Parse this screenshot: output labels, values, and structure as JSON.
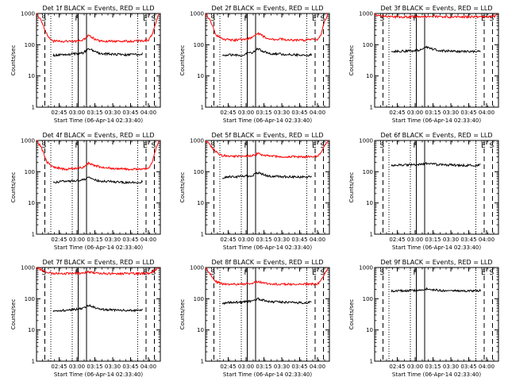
{
  "page": {
    "background": "#ffffff",
    "colors": {
      "events": "#000000",
      "lld": "#ff0000",
      "markers": "#000000"
    }
  },
  "chart_data": [
    {
      "type": "line",
      "detector": "1f",
      "title": "Det 1f BLACK = Events, RED = LLD",
      "xlabel": "Start Time (06-Apr-14 02:33:40)",
      "ylabel": "Counts/sec",
      "yscale": "log",
      "ylim": [
        1,
        1000
      ],
      "x_tick_labels": [
        "02:45",
        "03:00",
        "03:15",
        "03:30",
        "03:45",
        "04:00"
      ],
      "y_tick_labels": [
        "1",
        "10",
        "100",
        "1000"
      ],
      "markers": [
        "S",
        "F",
        "E",
        "S"
      ],
      "series": [
        {
          "color": "#000000",
          "x": [
            "02:40",
            "02:45",
            "02:55",
            "03:00",
            "03:05",
            "03:10",
            "03:15",
            "03:20",
            "03:30",
            "03:40",
            "03:50",
            "03:55"
          ],
          "y": [
            45,
            48,
            50,
            52,
            55,
            75,
            60,
            52,
            50,
            48,
            48,
            52
          ]
        },
        {
          "color": "#ff0000",
          "x": [
            "02:26",
            "02:30",
            "02:35",
            "02:40",
            "02:50",
            "03:00",
            "03:05",
            "03:10",
            "03:15",
            "03:20",
            "03:30",
            "03:40",
            "03:50",
            "04:00",
            "04:03",
            "04:06",
            "04:09"
          ],
          "y": [
            1000,
            600,
            200,
            130,
            130,
            130,
            140,
            200,
            150,
            130,
            130,
            130,
            130,
            140,
            200,
            500,
            1000
          ]
        }
      ]
    },
    {
      "type": "line",
      "detector": "2f",
      "title": "Det 2f BLACK = Events, RED = LLD",
      "xlabel": "Start Time (06-Apr-14 02:33:40)",
      "ylabel": "Counts/sec",
      "yscale": "log",
      "ylim": [
        1,
        1000
      ],
      "x_tick_labels": [
        "02:45",
        "03:00",
        "03:15",
        "03:30",
        "03:45",
        "04:00"
      ],
      "y_tick_labels": [
        "1",
        "10",
        "100",
        "1000"
      ],
      "markers": [
        "S",
        "F",
        "E",
        "S"
      ],
      "series": [
        {
          "color": "#000000",
          "x": [
            "02:40",
            "02:45",
            "02:55",
            "03:00",
            "03:05",
            "03:10",
            "03:15",
            "03:20",
            "03:30",
            "03:40",
            "03:50",
            "03:55"
          ],
          "y": [
            45,
            48,
            45,
            52,
            55,
            75,
            60,
            52,
            50,
            48,
            45,
            48
          ]
        },
        {
          "color": "#ff0000",
          "x": [
            "02:26",
            "02:30",
            "02:35",
            "02:40",
            "02:50",
            "03:00",
            "03:05",
            "03:10",
            "03:15",
            "03:20",
            "03:30",
            "03:40",
            "03:50",
            "04:00",
            "04:03",
            "04:06",
            "04:09"
          ],
          "y": [
            1000,
            600,
            200,
            150,
            140,
            150,
            170,
            230,
            180,
            150,
            150,
            140,
            140,
            150,
            220,
            550,
            1000
          ]
        }
      ]
    },
    {
      "type": "line",
      "detector": "3f",
      "title": "Det 3f BLACK = Events, RED = LLD",
      "xlabel": "Start Time (06-Apr-14 02:33:40)",
      "ylabel": "Counts/sec",
      "yscale": "log",
      "ylim": [
        1,
        1000
      ],
      "x_tick_labels": [
        "02:45",
        "03:00",
        "03:15",
        "03:30",
        "03:45",
        "04:00"
      ],
      "y_tick_labels": [
        "1",
        "10",
        "100",
        "1000"
      ],
      "markers": [
        "S",
        "F",
        "E",
        "S"
      ],
      "series": [
        {
          "color": "#000000",
          "x": [
            "02:40",
            "02:45",
            "02:55",
            "03:00",
            "03:05",
            "03:10",
            "03:15",
            "03:20",
            "03:30",
            "03:40",
            "03:50",
            "03:55"
          ],
          "y": [
            60,
            62,
            62,
            64,
            68,
            85,
            72,
            65,
            62,
            60,
            60,
            62
          ]
        },
        {
          "color": "#ff0000",
          "x": [
            "02:26",
            "02:28",
            "02:32",
            "02:40",
            "02:50",
            "03:00",
            "03:10",
            "03:20",
            "03:30",
            "03:40",
            "03:50",
            "04:00",
            "04:06",
            "04:08",
            "04:09"
          ],
          "y": [
            1000,
            900,
            800,
            780,
            780,
            790,
            800,
            790,
            780,
            780,
            780,
            790,
            800,
            900,
            1000
          ]
        }
      ]
    },
    {
      "type": "line",
      "detector": "4f",
      "title": "Det 4f BLACK = Events, RED = LLD",
      "xlabel": "Start Time (06-Apr-14 02:33:40)",
      "ylabel": "Counts/sec",
      "yscale": "log",
      "ylim": [
        1,
        1000
      ],
      "x_tick_labels": [
        "02:45",
        "03:00",
        "03:15",
        "03:30",
        "03:45",
        "04:00"
      ],
      "y_tick_labels": [
        "1",
        "10",
        "100",
        "1000"
      ],
      "markers": [
        "S",
        "F",
        "E",
        "S"
      ],
      "series": [
        {
          "color": "#000000",
          "x": [
            "02:40",
            "02:45",
            "02:55",
            "03:00",
            "03:05",
            "03:10",
            "03:15",
            "03:20",
            "03:30",
            "03:40",
            "03:50",
            "03:55"
          ],
          "y": [
            45,
            48,
            50,
            52,
            55,
            65,
            55,
            50,
            48,
            45,
            45,
            48
          ]
        },
        {
          "color": "#ff0000",
          "x": [
            "02:26",
            "02:30",
            "02:35",
            "02:40",
            "02:50",
            "03:00",
            "03:05",
            "03:10",
            "03:15",
            "03:20",
            "03:30",
            "03:40",
            "03:50",
            "04:00",
            "04:03",
            "04:06",
            "04:09"
          ],
          "y": [
            1000,
            600,
            200,
            140,
            120,
            130,
            140,
            190,
            160,
            140,
            130,
            120,
            120,
            130,
            200,
            500,
            1000
          ]
        }
      ]
    },
    {
      "type": "line",
      "detector": "5f",
      "title": "Det 5f BLACK = Events, RED = LLD",
      "xlabel": "Start Time (06-Apr-14 02:33:40)",
      "ylabel": "Counts/sec",
      "yscale": "log",
      "ylim": [
        1,
        1000
      ],
      "x_tick_labels": [
        "02:45",
        "03:00",
        "03:15",
        "03:30",
        "03:45",
        "04:00"
      ],
      "y_tick_labels": [
        "1",
        "10",
        "100",
        "1000"
      ],
      "markers": [
        "S",
        "F",
        "E",
        "S"
      ],
      "series": [
        {
          "color": "#000000",
          "x": [
            "02:40",
            "02:45",
            "02:55",
            "03:00",
            "03:05",
            "03:10",
            "03:15",
            "03:20",
            "03:30",
            "03:40",
            "03:50",
            "03:55"
          ],
          "y": [
            62,
            68,
            70,
            72,
            75,
            92,
            80,
            72,
            70,
            68,
            68,
            70
          ]
        },
        {
          "color": "#ff0000",
          "x": [
            "02:26",
            "02:30",
            "02:35",
            "02:40",
            "02:50",
            "03:00",
            "03:05",
            "03:10",
            "03:15",
            "03:20",
            "03:30",
            "03:40",
            "03:50",
            "04:00",
            "04:03",
            "04:06",
            "04:09"
          ],
          "y": [
            1000,
            700,
            420,
            330,
            310,
            320,
            330,
            380,
            340,
            320,
            300,
            300,
            300,
            310,
            400,
            700,
            1000
          ]
        }
      ]
    },
    {
      "type": "line",
      "detector": "6f",
      "title": "Det 6f BLACK = Events, RED = LLD",
      "xlabel": "Start Time (06-Apr-14 02:33:40)",
      "ylabel": "Counts/sec",
      "yscale": "log",
      "ylim": [
        1,
        1000
      ],
      "x_tick_labels": [
        "02:45",
        "03:00",
        "03:15",
        "03:30",
        "03:45",
        "04:00"
      ],
      "y_tick_labels": [
        "1",
        "10",
        "100",
        "1000"
      ],
      "markers": [
        "S",
        "F",
        "E",
        "S"
      ],
      "series": [
        {
          "color": "#000000",
          "x": [
            "02:40",
            "02:45",
            "02:55",
            "03:00",
            "03:05",
            "03:10",
            "03:15",
            "03:20",
            "03:30",
            "03:40",
            "03:50",
            "03:55"
          ],
          "y": [
            160,
            165,
            165,
            170,
            172,
            185,
            175,
            168,
            165,
            160,
            160,
            162
          ]
        }
      ]
    },
    {
      "type": "line",
      "detector": "7f",
      "title": "Det 7f BLACK = Events, RED = LLD",
      "xlabel": "Start Time (06-Apr-14 02:33:40)",
      "ylabel": "Counts/sec",
      "yscale": "log",
      "ylim": [
        1,
        1000
      ],
      "x_tick_labels": [
        "02:45",
        "03:00",
        "03:15",
        "03:30",
        "03:45",
        "04:00"
      ],
      "y_tick_labels": [
        "1",
        "10",
        "100",
        "1000"
      ],
      "markers": [
        "S",
        "F",
        "E",
        "S"
      ],
      "series": [
        {
          "color": "#000000",
          "x": [
            "02:40",
            "02:45",
            "02:55",
            "03:00",
            "03:05",
            "03:10",
            "03:15",
            "03:20",
            "03:30",
            "03:40",
            "03:50",
            "03:55"
          ],
          "y": [
            40,
            42,
            44,
            46,
            50,
            60,
            52,
            46,
            44,
            42,
            42,
            44
          ]
        },
        {
          "color": "#ff0000",
          "x": [
            "02:26",
            "02:30",
            "02:35",
            "02:40",
            "02:50",
            "03:00",
            "03:05",
            "03:10",
            "03:15",
            "03:20",
            "03:30",
            "03:40",
            "03:50",
            "04:00",
            "04:03",
            "04:06",
            "04:09"
          ],
          "y": [
            1000,
            850,
            700,
            650,
            640,
            650,
            660,
            720,
            680,
            650,
            640,
            640,
            640,
            650,
            700,
            850,
            1000
          ]
        }
      ]
    },
    {
      "type": "line",
      "detector": "8f",
      "title": "Det 8f BLACK = Events, RED = LLD",
      "xlabel": "Start Time (06-Apr-14 02:33:40)",
      "ylabel": "Counts/sec",
      "yscale": "log",
      "ylim": [
        1,
        1000
      ],
      "x_tick_labels": [
        "02:45",
        "03:00",
        "03:15",
        "03:30",
        "03:45",
        "04:00"
      ],
      "y_tick_labels": [
        "1",
        "10",
        "100",
        "1000"
      ],
      "markers": [
        "S",
        "F",
        "E",
        "S"
      ],
      "series": [
        {
          "color": "#000000",
          "x": [
            "02:40",
            "02:45",
            "02:55",
            "03:00",
            "03:05",
            "03:10",
            "03:15",
            "03:20",
            "03:30",
            "03:40",
            "03:50",
            "03:55"
          ],
          "y": [
            70,
            75,
            78,
            80,
            85,
            100,
            88,
            80,
            78,
            75,
            75,
            78
          ]
        },
        {
          "color": "#ff0000",
          "x": [
            "02:26",
            "02:30",
            "02:35",
            "02:40",
            "02:50",
            "03:00",
            "03:05",
            "03:10",
            "03:15",
            "03:20",
            "03:30",
            "03:40",
            "03:50",
            "04:00",
            "04:03",
            "04:06",
            "04:09"
          ],
          "y": [
            1000,
            600,
            350,
            300,
            290,
            300,
            310,
            350,
            320,
            300,
            290,
            290,
            290,
            300,
            380,
            650,
            1000
          ]
        }
      ]
    },
    {
      "type": "line",
      "detector": "9f",
      "title": "Det 9f BLACK = Events, RED = LLD",
      "xlabel": "Start Time (06-Apr-14 02:33:40)",
      "ylabel": "Counts/sec",
      "yscale": "log",
      "ylim": [
        1,
        1000
      ],
      "x_tick_labels": [
        "02:45",
        "03:00",
        "03:15",
        "03:30",
        "03:45",
        "04:00"
      ],
      "y_tick_labels": [
        "1",
        "10",
        "100",
        "1000"
      ],
      "markers": [
        "S",
        "F",
        "E",
        "S"
      ],
      "series": [
        {
          "color": "#000000",
          "x": [
            "02:40",
            "02:45",
            "02:55",
            "03:00",
            "03:05",
            "03:10",
            "03:15",
            "03:20",
            "03:30",
            "03:40",
            "03:50",
            "03:55"
          ],
          "y": [
            175,
            180,
            180,
            185,
            190,
            210,
            195,
            185,
            180,
            178,
            178,
            180
          ]
        }
      ]
    }
  ]
}
